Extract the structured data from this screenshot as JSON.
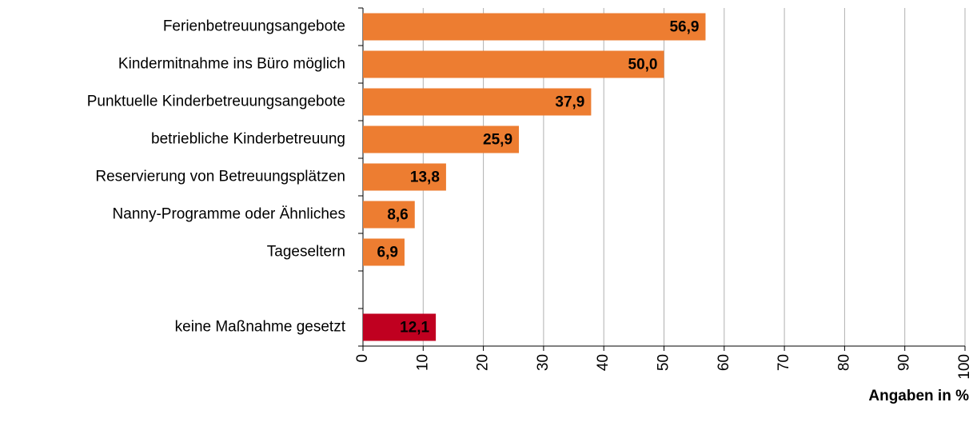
{
  "chart_data": {
    "type": "bar",
    "orientation": "horizontal",
    "categories": [
      "Ferienbetreuungsangebote",
      "Kindermitnahme ins Büro möglich",
      "Punktuelle Kinderbetreuungsangebote",
      "betriebliche Kinderbetreuung",
      "Reservierung von Betreuungsplätzen",
      "Nanny-Programme oder Ähnliches",
      "Tageseltern",
      null,
      "keine Maßnahme gesetzt"
    ],
    "values": [
      56.9,
      50.0,
      37.9,
      25.9,
      13.8,
      8.6,
      6.9,
      null,
      12.1
    ],
    "value_labels": [
      "56,9",
      "50,0",
      "37,9",
      "25,9",
      "13,8",
      "8,6",
      "6,9",
      null,
      "12,1"
    ],
    "colors": [
      "#ed7d31",
      "#ed7d31",
      "#ed7d31",
      "#ed7d31",
      "#ed7d31",
      "#ed7d31",
      "#ed7d31",
      null,
      "#c00020"
    ],
    "label_colors": [
      "#000000",
      "#000000",
      "#000000",
      "#000000",
      "#000000",
      "#000000",
      "#000000",
      null,
      "#ffffff"
    ],
    "xlabel": "Angaben in %",
    "xlim": [
      0,
      100
    ],
    "xticks": [
      0,
      10,
      20,
      30,
      40,
      50,
      60,
      70,
      80,
      90,
      100
    ],
    "grid": true
  }
}
